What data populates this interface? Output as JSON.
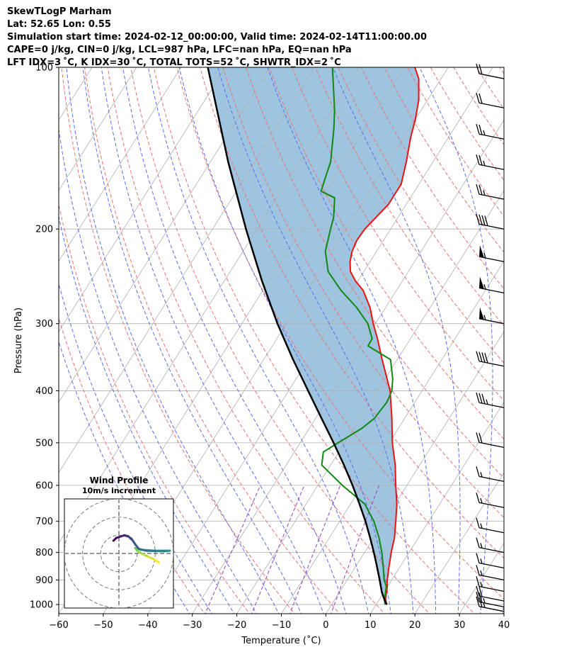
{
  "header": {
    "line1": "SkewTLogP Marham",
    "line2": "Lat: 52.65   Lon: 0.55",
    "line3": "Simulation start time: 2024-02-12_00:00:00, Valid time: 2024-02-14T11:00:00.00",
    "line4": "CAPE=0 j/kg, CIN=0 j/kg, LCL=987 hPa, LFC=nan hPa, EQ=nan hPa",
    "line5": "LFT IDX=3 ˚C, K IDX=30 ˚C, TOTAL TOTS=52 ˚C, SHWTR_IDX=2 ˚C"
  },
  "colors": {
    "temperature": "#ee1111",
    "dewpoint": "#118811",
    "parcel": "#000000",
    "shade": "#9ec4e0",
    "dry_adiabat": "#f07070",
    "moist_adiabat": "#5a6cf0",
    "mixing_ratio": "#9040c0",
    "isotherm": "#b0b0b0"
  },
  "chart_data": [
    {
      "type": "line",
      "subtype": "skew-t log-p",
      "xlabel": "Temperature (˚C)",
      "ylabel": "Pressure (hPa)",
      "xlim": [
        -60,
        40
      ],
      "ylim": [
        1040,
        100
      ],
      "xticks": [
        "−60",
        "−50",
        "−40",
        "−30",
        "−20",
        "−10",
        "0",
        "10",
        "20",
        "30",
        "40"
      ],
      "xtick_values": [
        -60,
        -50,
        -40,
        -30,
        -20,
        -10,
        0,
        10,
        20,
        30,
        40
      ],
      "yticks": [
        "100",
        "200",
        "300",
        "400",
        "500",
        "600",
        "700",
        "800",
        "900",
        "1000"
      ],
      "ytick_values": [
        100,
        200,
        300,
        400,
        500,
        600,
        700,
        800,
        900,
        1000
      ],
      "grid": true,
      "series": [
        {
          "name": "Temperature",
          "points": [
            [
              1000,
              12.3
            ],
            [
              975,
              11.3
            ],
            [
              950,
              10.6
            ],
            [
              925,
              9.9
            ],
            [
              900,
              9.0
            ],
            [
              850,
              7.5
            ],
            [
              800,
              6.0
            ],
            [
              750,
              4.6
            ],
            [
              700,
              2.6
            ],
            [
              650,
              0.4
            ],
            [
              600,
              -2.5
            ],
            [
              550,
              -5.5
            ],
            [
              500,
              -9.3
            ],
            [
              450,
              -12.9
            ],
            [
              400,
              -17.2
            ],
            [
              350,
              -23.4
            ],
            [
              320,
              -27.4
            ],
            [
              300,
              -30.5
            ],
            [
              280,
              -33.5
            ],
            [
              260,
              -37.5
            ],
            [
              250,
              -40.5
            ],
            [
              240,
              -43.0
            ],
            [
              230,
              -44.5
            ],
            [
              220,
              -45.5
            ],
            [
              210,
              -46.0
            ],
            [
              200,
              -45.8
            ],
            [
              180,
              -44.0
            ],
            [
              165,
              -44.0
            ],
            [
              150,
              -46.0
            ],
            [
              135,
              -48.5
            ],
            [
              125,
              -50.0
            ],
            [
              115,
              -52.0
            ],
            [
              105,
              -55.0
            ],
            [
              100,
              -57.5
            ]
          ]
        },
        {
          "name": "Dewpoint",
          "points": [
            [
              1000,
              12.0
            ],
            [
              975,
              11.0
            ],
            [
              950,
              10.4
            ],
            [
              925,
              9.7
            ],
            [
              900,
              8.3
            ],
            [
              850,
              6.2
            ],
            [
              800,
              3.9
            ],
            [
              750,
              1.1
            ],
            [
              700,
              -2.3
            ],
            [
              650,
              -6.8
            ],
            [
              600,
              -14.5
            ],
            [
              550,
              -22.0
            ],
            [
              520,
              -23.5
            ],
            [
              500,
              -21.5
            ],
            [
              470,
              -18.2
            ],
            [
              450,
              -16.8
            ],
            [
              420,
              -16.3
            ],
            [
              400,
              -16.8
            ],
            [
              380,
              -18.3
            ],
            [
              350,
              -21.5
            ],
            [
              330,
              -28.5
            ],
            [
              320,
              -28.6
            ],
            [
              300,
              -31.7
            ],
            [
              280,
              -36.5
            ],
            [
              260,
              -42.5
            ],
            [
              240,
              -48.0
            ],
            [
              220,
              -51.5
            ],
            [
              200,
              -53.5
            ],
            [
              190,
              -54.5
            ],
            [
              175,
              -57.0
            ],
            [
              170,
              -61.0
            ],
            [
              160,
              -62.0
            ],
            [
              150,
              -63.0
            ],
            [
              130,
              -67.0
            ],
            [
              120,
              -69.5
            ],
            [
              100,
              -76.0
            ]
          ]
        },
        {
          "name": "Parcel",
          "points": [
            [
              1000,
              12.4
            ],
            [
              987,
              11.6
            ],
            [
              950,
              9.6
            ],
            [
              900,
              7.3
            ],
            [
              850,
              4.8
            ],
            [
              800,
              2.1
            ],
            [
              750,
              -0.9
            ],
            [
              700,
              -4.2
            ],
            [
              650,
              -8.0
            ],
            [
              600,
              -12.2
            ],
            [
              550,
              -17.0
            ],
            [
              500,
              -22.5
            ],
            [
              450,
              -28.7
            ],
            [
              400,
              -35.6
            ],
            [
              350,
              -43.4
            ],
            [
              300,
              -52.0
            ],
            [
              250,
              -61.5
            ],
            [
              200,
              -72.5
            ],
            [
              150,
              -86.0
            ],
            [
              100,
              -104.0
            ]
          ]
        }
      ],
      "wind_barbs": [
        {
          "p": 1030,
          "speed_kt": 25
        },
        {
          "p": 1010,
          "speed_kt": 25
        },
        {
          "p": 985,
          "speed_kt": 20
        },
        {
          "p": 945,
          "speed_kt": 15
        },
        {
          "p": 900,
          "speed_kt": 15
        },
        {
          "p": 855,
          "speed_kt": 15
        },
        {
          "p": 800,
          "speed_kt": 15
        },
        {
          "p": 735,
          "speed_kt": 15
        },
        {
          "p": 660,
          "speed_kt": 15
        },
        {
          "p": 590,
          "speed_kt": 15
        },
        {
          "p": 510,
          "speed_kt": 20
        },
        {
          "p": 430,
          "speed_kt": 35
        },
        {
          "p": 360,
          "speed_kt": 40
        },
        {
          "p": 300,
          "speed_kt": 55
        },
        {
          "p": 263,
          "speed_kt": 55
        },
        {
          "p": 230,
          "speed_kt": 55
        },
        {
          "p": 200,
          "speed_kt": 40
        },
        {
          "p": 176,
          "speed_kt": 25
        },
        {
          "p": 155,
          "speed_kt": 25
        },
        {
          "p": 136,
          "speed_kt": 25
        },
        {
          "p": 119,
          "speed_kt": 20
        },
        {
          "p": 105,
          "speed_kt": 20
        }
      ]
    },
    {
      "type": "scatter",
      "title": "Wind Profile",
      "subtitle": "10m/s increment",
      "rings_ms": [
        10,
        20,
        30
      ],
      "range_ms": 30,
      "hodograph_uv": [
        [
          22,
          -5
        ],
        [
          19,
          -3
        ],
        [
          15.5,
          -1.5
        ],
        [
          12.5,
          0
        ],
        [
          10,
          1.5
        ],
        [
          9,
          3
        ],
        [
          12,
          2
        ],
        [
          16,
          1.8
        ],
        [
          20,
          1.5
        ],
        [
          24,
          1.5
        ],
        [
          28,
          1.5
        ],
        [
          25,
          1.2
        ],
        [
          20,
          1.3
        ],
        [
          15,
          1.5
        ],
        [
          11,
          2.5
        ],
        [
          9,
          5
        ],
        [
          7,
          8
        ],
        [
          5,
          9.5
        ],
        [
          3,
          10
        ],
        [
          0,
          9
        ],
        [
          -1.5,
          8.5
        ],
        [
          -3,
          7
        ]
      ]
    }
  ]
}
